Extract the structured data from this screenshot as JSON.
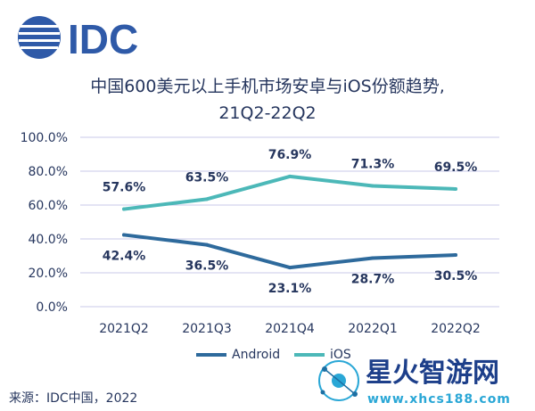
{
  "header": {
    "brand": "IDC"
  },
  "title_lines": [
    "中国600美元以上手机市场安卓与iOS份额趋势,",
    "21Q2-22Q2"
  ],
  "source": "来源：IDC中国，2022",
  "watermark": {
    "text": "星火智游网",
    "url": "www.xhcs188.com"
  },
  "colors": {
    "Android": "#2e6a9c",
    "iOS": "#4cb8b8",
    "grid": "#c9c9e8",
    "text": "#26365e"
  },
  "chart_data": {
    "type": "line",
    "title": "中国600美元以上手机市场安卓与iOS份额趋势, 21Q2-22Q2",
    "categories": [
      "2021Q2",
      "2021Q3",
      "2021Q4",
      "2022Q1",
      "2022Q2"
    ],
    "series": [
      {
        "name": "Android",
        "values": [
          42.4,
          36.5,
          23.1,
          28.7,
          30.5
        ],
        "labels": [
          "42.4%",
          "36.5%",
          "23.1%",
          "28.7%",
          "30.5%"
        ]
      },
      {
        "name": "iOS",
        "values": [
          57.6,
          63.5,
          76.9,
          71.3,
          69.5
        ],
        "labels": [
          "57.6%",
          "63.5%",
          "76.9%",
          "71.3%",
          "69.5%"
        ]
      }
    ],
    "yticks": [
      "0.0%",
      "20.0%",
      "40.0%",
      "60.0%",
      "80.0%",
      "100.0%"
    ],
    "ylim": [
      0,
      100
    ],
    "grid": true,
    "legend": "bottom-center"
  }
}
